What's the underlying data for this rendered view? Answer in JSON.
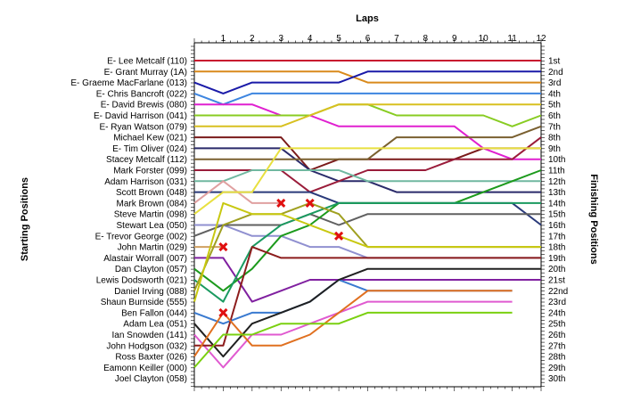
{
  "chart_data": {
    "type": "line",
    "title": "",
    "xlabel": "Laps",
    "ylabel_left": "Starting Positions",
    "ylabel_right": "Finishing Positions",
    "laps": [
      "1",
      "2",
      "3",
      "4",
      "5",
      "6",
      "7",
      "8",
      "9",
      "10",
      "11",
      "12"
    ],
    "finish_labels": [
      "1st",
      "2nd",
      "3rd",
      "4th",
      "5th",
      "6th",
      "7th",
      "8th",
      "9th",
      "10th",
      "11th",
      "12th",
      "13th",
      "14th",
      "15th",
      "16th",
      "17th",
      "18th",
      "19th",
      "20th",
      "21st",
      "22nd",
      "23rd",
      "24th",
      "25th",
      "26th",
      "27th",
      "28th",
      "29th",
      "30th"
    ],
    "grid": false,
    "series": [
      {
        "name": "E- Lee Metcalf (110)",
        "color": "#c8102e",
        "positions": [
          1,
          1,
          1,
          1,
          1,
          1,
          1,
          1,
          1,
          1,
          1,
          1,
          1
        ]
      },
      {
        "name": "E- Grant Murray (1A)",
        "color": "#d98a1c",
        "positions": [
          2,
          2,
          2,
          2,
          2,
          2,
          3,
          3,
          3,
          3,
          3,
          3,
          3
        ]
      },
      {
        "name": "E- Graeme MacFarlane (013)",
        "color": "#1a1aa8",
        "positions": [
          3,
          4,
          3,
          3,
          3,
          3,
          2,
          2,
          2,
          2,
          2,
          2,
          2
        ]
      },
      {
        "name": "E- Chris Bancroft (022)",
        "color": "#3d85e0",
        "positions": [
          4,
          5,
          4,
          4,
          4,
          4,
          4,
          4,
          4,
          4,
          4,
          4,
          4
        ]
      },
      {
        "name": "E- David Brewis (080)",
        "color": "#e020d0",
        "positions": [
          5,
          5,
          5,
          6,
          6,
          7,
          7,
          7,
          7,
          7,
          9,
          10,
          10
        ]
      },
      {
        "name": "E- David Harrison (041)",
        "color": "#88cc22",
        "positions": [
          6,
          6,
          6,
          6,
          6,
          5,
          5,
          6,
          6,
          6,
          6,
          7,
          6
        ]
      },
      {
        "name": "E- Ryan Watson (079)",
        "color": "#d8c020",
        "positions": [
          7,
          7,
          7,
          7,
          6,
          5,
          5,
          5,
          5,
          5,
          5,
          5,
          5
        ]
      },
      {
        "name": "Michael Kew (021)",
        "color": "#7a1a1a",
        "positions": [
          8,
          8,
          8,
          8,
          11,
          10,
          10,
          10,
          10,
          10,
          9,
          9,
          9
        ]
      },
      {
        "name": "E- Tim Oliver (024)",
        "color": "#2a2a6a",
        "positions": [
          9,
          9,
          9,
          9,
          11,
          12,
          12,
          13,
          13,
          13,
          13,
          13,
          13
        ]
      },
      {
        "name": "Stacey Metcalf (112)",
        "color": "#7a6030",
        "positions": [
          10,
          10,
          10,
          10,
          10,
          10,
          10,
          8,
          8,
          8,
          8,
          8,
          7
        ]
      },
      {
        "name": "Mark Forster (099)",
        "color": "#9a1c3a",
        "positions": [
          11,
          11,
          11,
          11,
          13,
          12,
          11,
          11,
          11,
          10,
          10,
          10,
          8
        ]
      },
      {
        "name": "Adam Harrison (031)",
        "color": "#70b8a0",
        "positions": [
          12,
          12,
          11,
          11,
          11,
          11,
          12,
          12,
          12,
          12,
          12,
          12,
          12
        ]
      },
      {
        "name": "Scott Brown (048)",
        "color": "#2a3a7a",
        "positions": [
          13,
          13,
          13,
          13,
          13,
          14,
          14,
          14,
          14,
          14,
          14,
          14,
          16
        ]
      },
      {
        "name": "Mark Brown (084)",
        "color": "#e0a0a0",
        "positions": [
          14,
          12,
          14,
          14,
          null,
          null,
          null,
          null,
          null,
          null,
          null,
          null,
          null
        ]
      },
      {
        "name": "Steve Martin (098)",
        "color": "#e8e040",
        "positions": [
          15,
          13,
          13,
          9,
          9,
          9,
          9,
          9,
          9,
          9,
          9,
          9,
          9
        ]
      },
      {
        "name": "Stewart Lea (050)",
        "color": "#9090d0",
        "positions": [
          16,
          16,
          17,
          17,
          18,
          18,
          19,
          19,
          19,
          19,
          19,
          19,
          19
        ]
      },
      {
        "name": "E- Trevor George (002)",
        "color": "#606060",
        "positions": [
          17,
          16,
          16,
          16,
          15,
          16,
          15,
          15,
          15,
          15,
          15,
          15,
          15
        ]
      },
      {
        "name": "John Martin (029)",
        "color": "#d0a060",
        "positions": [
          18,
          18,
          null,
          null,
          null,
          null,
          null,
          null,
          null,
          null,
          null,
          null,
          null
        ]
      },
      {
        "name": "Alastair Worrall (007)",
        "color": "#8020a0",
        "positions": [
          19,
          19,
          23,
          22,
          21,
          21,
          21,
          21,
          21,
          21,
          21,
          21,
          21
        ]
      },
      {
        "name": "Dan Clayton (057)",
        "color": "#1c9a1c",
        "positions": [
          20,
          22,
          20,
          17,
          16,
          14,
          14,
          14,
          14,
          14,
          13,
          12,
          11
        ]
      },
      {
        "name": "Lewis Dodsworth (021)",
        "color": "#1a9a60",
        "positions": [
          21,
          23,
          18,
          16,
          15,
          14,
          14,
          14,
          14,
          14,
          14,
          14,
          14
        ]
      },
      {
        "name": "Daniel Irving (088)",
        "color": "#a0a020",
        "positions": [
          22,
          16,
          15,
          15,
          14,
          15,
          18,
          18,
          18,
          18,
          18,
          18,
          18
        ]
      },
      {
        "name": "Shaun Burnside (555)",
        "color": "#c8c810",
        "positions": [
          23,
          14,
          15,
          15,
          16,
          17,
          18,
          18,
          18,
          18,
          18,
          18,
          18
        ]
      },
      {
        "name": "Ben Fallon (044)",
        "color": "#3a7ad0",
        "positions": [
          24,
          25,
          24,
          24,
          23,
          21,
          22,
          22,
          22,
          22,
          22,
          22,
          null
        ]
      },
      {
        "name": "Adam Lea (051)",
        "color": "#202020",
        "positions": [
          25,
          28,
          25,
          24,
          23,
          21,
          20,
          20,
          20,
          20,
          20,
          20,
          20
        ]
      },
      {
        "name": "Ian Snowden (141)",
        "color": "#e05ad0",
        "positions": [
          26,
          29,
          26,
          26,
          25,
          24,
          23,
          23,
          23,
          23,
          23,
          23,
          null
        ]
      },
      {
        "name": "John Hodgson (032)",
        "color": "#8c1c1c",
        "positions": [
          27,
          27,
          18,
          19,
          19,
          19,
          19,
          19,
          19,
          19,
          19,
          19,
          19
        ]
      },
      {
        "name": "Ross Baxter (026)",
        "color": "#e07020",
        "positions": [
          28,
          24,
          27,
          27,
          26,
          24,
          22,
          22,
          22,
          22,
          22,
          22,
          null
        ]
      },
      {
        "name": "Eamonn Keiller (000)",
        "color": "#7ad010",
        "positions": [
          29,
          26,
          26,
          25,
          25,
          25,
          24,
          24,
          24,
          24,
          24,
          24,
          null
        ]
      },
      {
        "name": "Joel Clayton (058)",
        "color": "#c8a000",
        "positions": [
          30,
          null,
          null,
          null,
          null,
          null,
          null,
          null,
          null,
          null,
          null,
          null,
          null
        ]
      }
    ],
    "retirements": [
      {
        "series": "Mark Brown (084)",
        "lap": 3
      },
      {
        "series": "John Martin (029)",
        "lap": 1
      },
      {
        "series": "Daniel Irving (088)",
        "lap": 4
      },
      {
        "series": "Shaun Burnside (555)",
        "lap": 5
      },
      {
        "series": "Ross Baxter (026)",
        "lap": 1
      }
    ]
  }
}
